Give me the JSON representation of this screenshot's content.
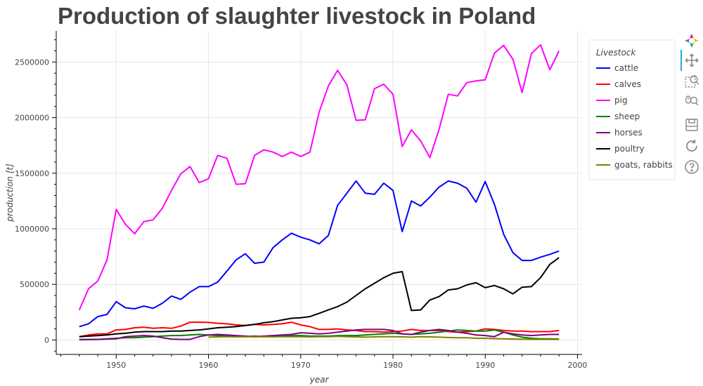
{
  "chart_data": {
    "type": "line",
    "title": "Production of slaughter livestock in Poland",
    "xlabel": "year",
    "ylabel": "production [t]",
    "xlim": [
      1943.5,
      2000.5
    ],
    "ylim": [
      -130000,
      2780000
    ],
    "xticks": [
      1950,
      1960,
      1970,
      1980,
      1990,
      2000
    ],
    "yticks": [
      0,
      500000,
      1000000,
      1500000,
      2000000,
      2500000
    ],
    "grid": true,
    "legend": {
      "title": "Livestock",
      "placement": "top-right outside"
    },
    "series": [
      {
        "name": "cattle",
        "color": "#0000ff",
        "x": [
          1946,
          1947,
          1948,
          1949,
          1950,
          1951,
          1952,
          1953,
          1954,
          1955,
          1956,
          1957,
          1958,
          1959,
          1960,
          1961,
          1962,
          1963,
          1964,
          1965,
          1966,
          1967,
          1968,
          1969,
          1970,
          1971,
          1972,
          1973,
          1974,
          1975,
          1976,
          1977,
          1978,
          1979,
          1980,
          1981,
          1982,
          1983,
          1984,
          1985,
          1986,
          1987,
          1988,
          1989,
          1990,
          1991,
          1992,
          1993,
          1994,
          1995,
          1996,
          1997,
          1998
        ],
        "y": [
          120000,
          145000,
          210000,
          230000,
          345000,
          290000,
          280000,
          305000,
          285000,
          330000,
          395000,
          365000,
          430000,
          480000,
          480000,
          520000,
          620000,
          720000,
          775000,
          690000,
          700000,
          830000,
          900000,
          960000,
          925000,
          900000,
          865000,
          940000,
          1210000,
          1320000,
          1430000,
          1320000,
          1310000,
          1410000,
          1345000,
          975000,
          1250000,
          1205000,
          1285000,
          1375000,
          1430000,
          1410000,
          1365000,
          1240000,
          1425000,
          1220000,
          950000,
          785000,
          715000,
          715000,
          745000,
          770000,
          800000
        ]
      },
      {
        "name": "calves",
        "color": "#ff0000",
        "x": [
          1946,
          1947,
          1948,
          1949,
          1950,
          1951,
          1952,
          1953,
          1954,
          1955,
          1956,
          1957,
          1958,
          1959,
          1960,
          1961,
          1962,
          1963,
          1964,
          1965,
          1966,
          1967,
          1968,
          1969,
          1970,
          1971,
          1972,
          1973,
          1974,
          1975,
          1976,
          1977,
          1978,
          1979,
          1980,
          1981,
          1982,
          1983,
          1984,
          1985,
          1986,
          1987,
          1988,
          1989,
          1990,
          1991,
          1992,
          1993,
          1994,
          1995,
          1996,
          1997,
          1998
        ],
        "y": [
          30000,
          45000,
          55000,
          55000,
          90000,
          95000,
          110000,
          115000,
          105000,
          110000,
          105000,
          125000,
          160000,
          160000,
          158000,
          150000,
          145000,
          135000,
          130000,
          140000,
          135000,
          140000,
          145000,
          160000,
          135000,
          120000,
          95000,
          95000,
          100000,
          90000,
          85000,
          75000,
          75000,
          70000,
          75000,
          80000,
          95000,
          85000,
          85000,
          85000,
          75000,
          70000,
          75000,
          80000,
          100000,
          95000,
          85000,
          80000,
          80000,
          75000,
          75000,
          75000,
          85000
        ]
      },
      {
        "name": "pig",
        "color": "#ff00ff",
        "x": [
          1946,
          1947,
          1948,
          1949,
          1950,
          1951,
          1952,
          1953,
          1954,
          1955,
          1956,
          1957,
          1958,
          1959,
          1960,
          1961,
          1962,
          1963,
          1964,
          1965,
          1966,
          1967,
          1968,
          1969,
          1970,
          1971,
          1972,
          1973,
          1974,
          1975,
          1976,
          1977,
          1978,
          1979,
          1980,
          1981,
          1982,
          1983,
          1984,
          1985,
          1986,
          1987,
          1988,
          1989,
          1990,
          1991,
          1992,
          1993,
          1994,
          1995,
          1996,
          1997,
          1998
        ],
        "y": [
          270000,
          460000,
          530000,
          720000,
          1175000,
          1040000,
          955000,
          1065000,
          1080000,
          1185000,
          1345000,
          1495000,
          1560000,
          1415000,
          1450000,
          1660000,
          1635000,
          1400000,
          1405000,
          1660000,
          1710000,
          1690000,
          1650000,
          1690000,
          1650000,
          1690000,
          2050000,
          2285000,
          2425000,
          2295000,
          1975000,
          1980000,
          2260000,
          2300000,
          2210000,
          1740000,
          1890000,
          1790000,
          1640000,
          1895000,
          2210000,
          2195000,
          2315000,
          2330000,
          2340000,
          2580000,
          2650000,
          2525000,
          2225000,
          2575000,
          2655000,
          2430000,
          2600000
        ]
      },
      {
        "name": "sheep",
        "color": "#008000",
        "x": [
          1946,
          1947,
          1948,
          1949,
          1950,
          1951,
          1952,
          1953,
          1954,
          1955,
          1956,
          1957,
          1958,
          1959,
          1960,
          1961,
          1962,
          1963,
          1964,
          1965,
          1966,
          1967,
          1968,
          1969,
          1970,
          1971,
          1972,
          1973,
          1974,
          1975,
          1976,
          1977,
          1978,
          1979,
          1980,
          1981,
          1982,
          1983,
          1984,
          1985,
          1986,
          1987,
          1988,
          1989,
          1990,
          1991,
          1992,
          1993,
          1994,
          1995,
          1996,
          1997,
          1998
        ],
        "y": [
          5000,
          5000,
          5000,
          10000,
          15000,
          20000,
          20000,
          25000,
          30000,
          35000,
          40000,
          40000,
          45000,
          50000,
          45000,
          40000,
          35000,
          35000,
          30000,
          35000,
          30000,
          35000,
          35000,
          40000,
          40000,
          35000,
          35000,
          35000,
          40000,
          40000,
          40000,
          45000,
          50000,
          55000,
          60000,
          55000,
          50000,
          55000,
          60000,
          70000,
          80000,
          90000,
          85000,
          80000,
          80000,
          90000,
          70000,
          45000,
          25000,
          15000,
          10000,
          10000,
          8000
        ]
      },
      {
        "name": "horses",
        "color": "#800080",
        "x": [
          1946,
          1947,
          1948,
          1949,
          1950,
          1951,
          1952,
          1953,
          1954,
          1955,
          1956,
          1957,
          1958,
          1959,
          1960,
          1961,
          1962,
          1963,
          1964,
          1965,
          1966,
          1967,
          1968,
          1969,
          1970,
          1971,
          1972,
          1973,
          1974,
          1975,
          1976,
          1977,
          1978,
          1979,
          1980,
          1981,
          1982,
          1983,
          1984,
          1985,
          1986,
          1987,
          1988,
          1989,
          1990,
          1991,
          1992,
          1993,
          1994,
          1995,
          1996,
          1997,
          1998
        ],
        "y": [
          2000,
          3000,
          5000,
          8000,
          10000,
          30000,
          35000,
          40000,
          35000,
          20000,
          8000,
          5000,
          5000,
          30000,
          45000,
          50000,
          45000,
          40000,
          35000,
          30000,
          35000,
          40000,
          45000,
          50000,
          65000,
          60000,
          55000,
          60000,
          70000,
          80000,
          90000,
          95000,
          95000,
          95000,
          85000,
          55000,
          50000,
          70000,
          85000,
          95000,
          85000,
          70000,
          60000,
          45000,
          40000,
          30000,
          70000,
          55000,
          45000,
          40000,
          45000,
          50000,
          50000
        ]
      },
      {
        "name": "poultry",
        "color": "#000000",
        "x": [
          1946,
          1947,
          1948,
          1949,
          1950,
          1951,
          1952,
          1953,
          1954,
          1955,
          1956,
          1957,
          1958,
          1959,
          1960,
          1961,
          1962,
          1963,
          1964,
          1965,
          1966,
          1967,
          1968,
          1969,
          1970,
          1971,
          1972,
          1973,
          1974,
          1975,
          1976,
          1977,
          1978,
          1979,
          1980,
          1981,
          1982,
          1983,
          1984,
          1985,
          1986,
          1987,
          1988,
          1989,
          1990,
          1991,
          1992,
          1993,
          1994,
          1995,
          1996,
          1997,
          1998
        ],
        "y": [
          30000,
          35000,
          40000,
          45000,
          55000,
          60000,
          70000,
          75000,
          75000,
          75000,
          80000,
          80000,
          85000,
          90000,
          100000,
          110000,
          115000,
          120000,
          130000,
          140000,
          155000,
          165000,
          180000,
          195000,
          200000,
          210000,
          240000,
          270000,
          300000,
          340000,
          400000,
          460000,
          510000,
          560000,
          600000,
          615000,
          265000,
          270000,
          360000,
          390000,
          450000,
          460000,
          495000,
          515000,
          470000,
          490000,
          460000,
          415000,
          475000,
          480000,
          560000,
          680000,
          740000
        ]
      },
      {
        "name": "goats, rabbits",
        "color": "#808000",
        "x": [
          1960,
          1961,
          1962,
          1963,
          1964,
          1965,
          1966,
          1967,
          1968,
          1969,
          1970,
          1971,
          1972,
          1973,
          1974,
          1975,
          1976,
          1977,
          1978,
          1979,
          1980,
          1981,
          1982,
          1983,
          1984,
          1985,
          1986,
          1987,
          1988,
          1989,
          1990,
          1991,
          1992,
          1993,
          1994,
          1995,
          1996,
          1997,
          1998
        ],
        "y": [
          25000,
          28000,
          30000,
          28000,
          30000,
          28000,
          30000,
          28000,
          30000,
          30000,
          30000,
          28000,
          30000,
          30000,
          32000,
          30000,
          28000,
          25000,
          28000,
          30000,
          30000,
          28000,
          25000,
          30000,
          28000,
          25000,
          22000,
          20000,
          20000,
          15000,
          15000,
          12000,
          10000,
          8000,
          7000,
          6000,
          6000,
          6000,
          5000
        ]
      }
    ]
  },
  "toolbar": {
    "tools": [
      {
        "name": "bokeh-logo-icon"
      },
      {
        "name": "pan-icon"
      },
      {
        "name": "box-zoom-icon"
      },
      {
        "name": "wheel-zoom-icon"
      },
      {
        "name": "save-icon"
      },
      {
        "name": "reset-icon"
      },
      {
        "name": "help-icon"
      }
    ],
    "active_color": "#26aae1"
  }
}
